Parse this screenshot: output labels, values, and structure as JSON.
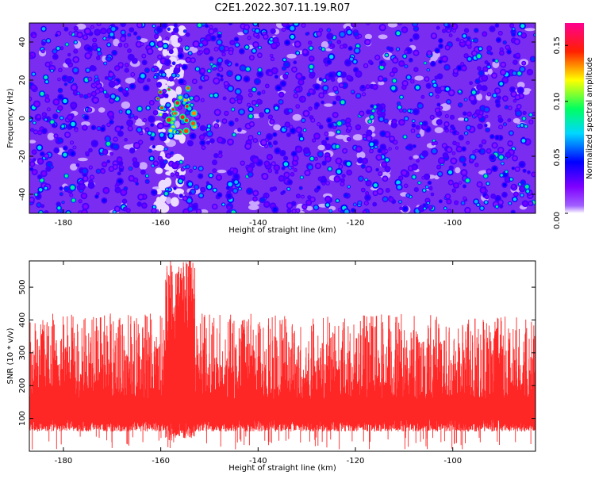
{
  "title": "C2E1.2022.307.11.19.R07",
  "chart_data": [
    {
      "type": "heatmap",
      "xlabel": "Height of straight line (km)",
      "ylabel": "Frequency (Hz)",
      "xlim": [
        -187,
        -83
      ],
      "ylim": [
        -50,
        50
      ],
      "xticks": [
        -180,
        -160,
        -140,
        -120,
        -100
      ],
      "yticks": [
        -40,
        -20,
        0,
        20,
        40
      ],
      "colorbar": {
        "label": "Normalized spectral amplitude",
        "range": [
          0.0,
          0.17
        ],
        "ticks": [
          "0.00",
          "0.05",
          "0.10",
          "0.15"
        ],
        "colors": [
          "#ffffff",
          "#7f00ff",
          "#0000ff",
          "#00d8ff",
          "#00ff60",
          "#ffff00",
          "#ff2000",
          "#ff0090"
        ]
      },
      "hotspot": {
        "x_center": -157,
        "x_range": [
          -161,
          -153
        ],
        "freq_range": [
          -8,
          16
        ],
        "peak_amplitude": 0.16
      }
    },
    {
      "type": "line",
      "xlabel": "Height of straight line (km)",
      "ylabel": "SNR (10 * v/v)",
      "xlim": [
        -187,
        -83
      ],
      "ylim": [
        0,
        580
      ],
      "xticks": [
        -180,
        -160,
        -140,
        -120,
        -100
      ],
      "yticks": [
        100,
        200,
        300,
        400,
        500
      ],
      "color": "#ff0000",
      "typical_range": [
        60,
        300
      ],
      "typical_peak": 420,
      "peak_region": {
        "x_range": [
          -159,
          -153
        ],
        "peak_x": -154,
        "peak_value": 580
      }
    }
  ]
}
